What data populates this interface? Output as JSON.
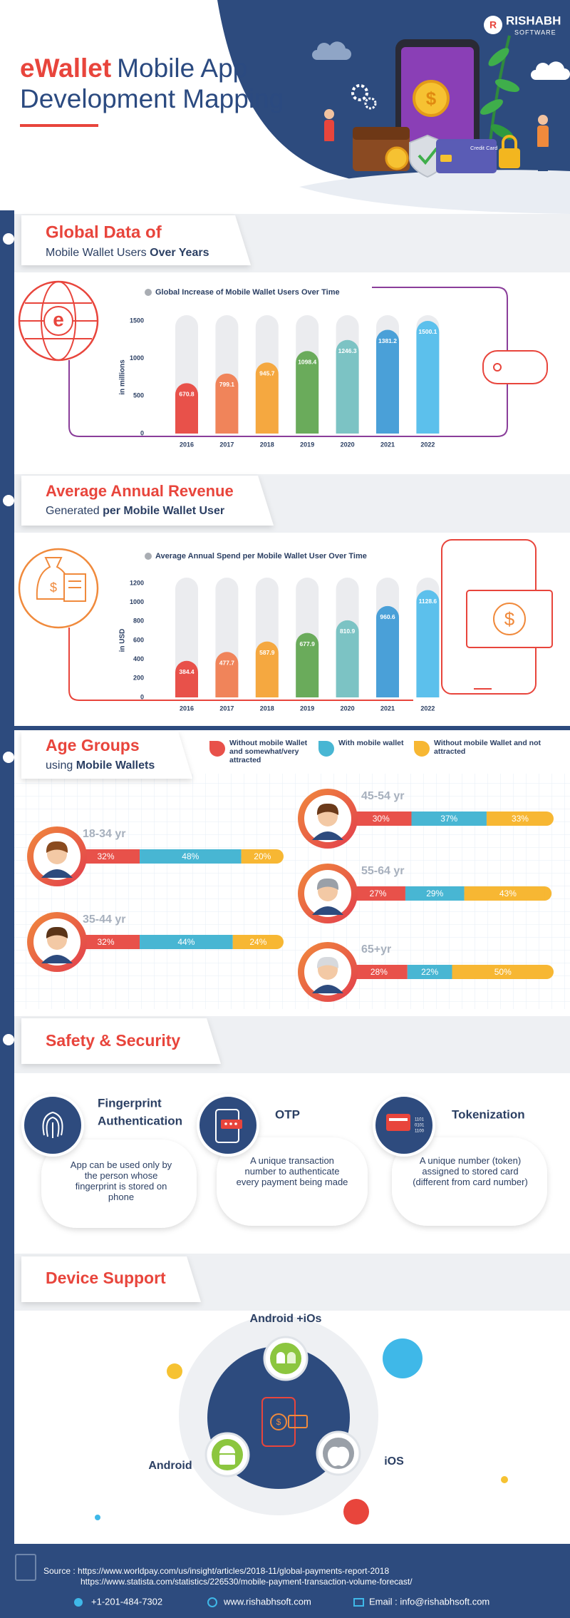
{
  "header": {
    "title_highlight": "eWallet",
    "title_line1": "Mobile App",
    "title_line2": "Development Mapping",
    "logo_name": "RISHABH",
    "logo_sub": "SOFTWARE",
    "card_label": "Credit Card"
  },
  "sections": [
    {
      "heading": "Global Data of",
      "subheading": "Mobile Wallet Users",
      "subheading_bold": "Over Years"
    },
    {
      "heading": "Average Annual Revenue",
      "subheading": "Generated",
      "subheading_bold": "per Mobile Wallet User"
    }
  ],
  "chart_data": [
    {
      "type": "bar",
      "title": "Global Increase of Mobile Wallet Users Over Time",
      "y_label": "in millions",
      "categories": [
        "2016",
        "2017",
        "2018",
        "2019",
        "2020",
        "2021",
        "2022"
      ],
      "values": [
        670.8,
        799.1,
        945.7,
        1098.4,
        1246.3,
        1381.2,
        1500.1
      ],
      "colors": [
        "#e8514a",
        "#f0845a",
        "#f5a840",
        "#6aab5b",
        "#7cc3c4",
        "#4aa0d8",
        "#5cc0ec"
      ],
      "ylim": [
        0,
        1500
      ],
      "yticks": [
        0,
        500,
        1000,
        1500
      ],
      "grid": false
    },
    {
      "type": "bar",
      "title": "Average Annual Spend per Mobile Wallet User Over Time",
      "y_label": "in USD",
      "categories": [
        "2016",
        "2017",
        "2018",
        "2019",
        "2020",
        "2021",
        "2022"
      ],
      "values": [
        384.4,
        477.7,
        587.9,
        677.9,
        810.9,
        960.6,
        1128.6
      ],
      "colors": [
        "#e8514a",
        "#f0845a",
        "#f5a840",
        "#6aab5b",
        "#7cc3c4",
        "#4aa0d8",
        "#5cc0ec"
      ],
      "ylim": [
        0,
        1200
      ],
      "yticks": [
        0,
        200,
        400,
        600,
        800,
        1000,
        1200
      ],
      "grid": false
    }
  ],
  "age_groups": {
    "heading": "Age Groups",
    "subheading": "using",
    "subheading_bold": "Mobile Wallets",
    "legend": [
      {
        "name": "Without mobile Wallet and somewhat/very attracted",
        "color": "#e8514a"
      },
      {
        "name": "With mobile wallet",
        "color": "#48b6d3"
      },
      {
        "name": "Without mobile Wallet and not attracted",
        "color": "#f7b733"
      }
    ],
    "groups": [
      {
        "label": "18-34 yr",
        "values": [
          32,
          48,
          20
        ],
        "value_labels": [
          "32%",
          "48%",
          "20%"
        ]
      },
      {
        "label": "35-44 yr",
        "values": [
          32,
          44,
          24
        ],
        "value_labels": [
          "32%",
          "44%",
          "24%"
        ]
      },
      {
        "label": "45-54 yr",
        "values": [
          30,
          37,
          33
        ],
        "value_labels": [
          "30%",
          "37%",
          "33%"
        ]
      },
      {
        "label": "55-64 yr",
        "values": [
          27,
          29,
          43
        ],
        "value_labels": [
          "27%",
          "29%",
          "43%"
        ]
      },
      {
        "label": "65+yr",
        "values": [
          28,
          22,
          50
        ],
        "value_labels": [
          "28%",
          "22%",
          "50%"
        ]
      }
    ]
  },
  "security": {
    "heading": "Safety & Security",
    "items": [
      {
        "title_lines": [
          "Fingerprint",
          "Authentication"
        ],
        "description": "App can be used only by the person whose fingerprint is stored on phone"
      },
      {
        "title_lines": [
          "OTP"
        ],
        "description": "A unique transaction number to authenticate every payment being made"
      },
      {
        "title_lines": [
          "Tokenization"
        ],
        "description": "A unique number (token) assigned to stored card (different from card number)"
      }
    ]
  },
  "devices": {
    "heading": "Device Support",
    "both": "Android +iOs",
    "android": "Android",
    "ios": "iOS"
  },
  "footer": {
    "source_label": "Source :",
    "sources": [
      "https://www.worldpay.com/us/insight/articles/2018-11/global-payments-report-2018",
      "https://www.statista.com/statistics/226530/mobile-payment-transaction-volume-forecast/"
    ],
    "phone": "+1-201-484-7302",
    "website": "www.rishabhsoft.com",
    "email": "Email : info@rishabhsoft.com"
  }
}
